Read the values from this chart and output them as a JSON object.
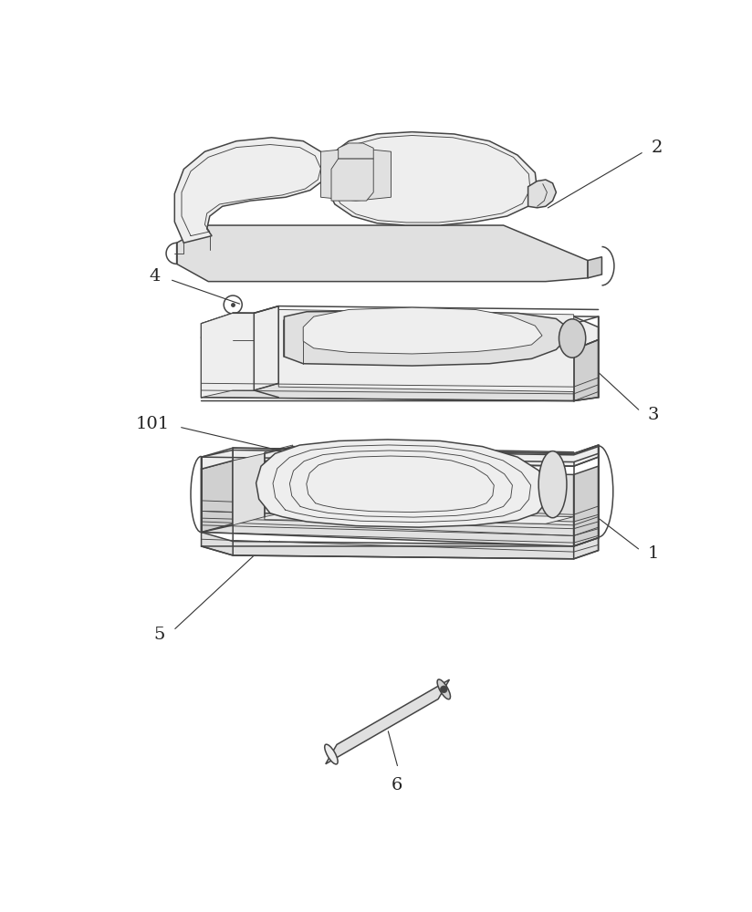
{
  "background_color": "#ffffff",
  "lc": "#444444",
  "lw": 1.1,
  "tlw": 0.65,
  "fig_width": 8.24,
  "fig_height": 10.0,
  "gray1": "#eeeeee",
  "gray2": "#e0e0e0",
  "gray3": "#d0d0d0",
  "gray4": "#c8c8c8",
  "white": "#f8f8f8"
}
